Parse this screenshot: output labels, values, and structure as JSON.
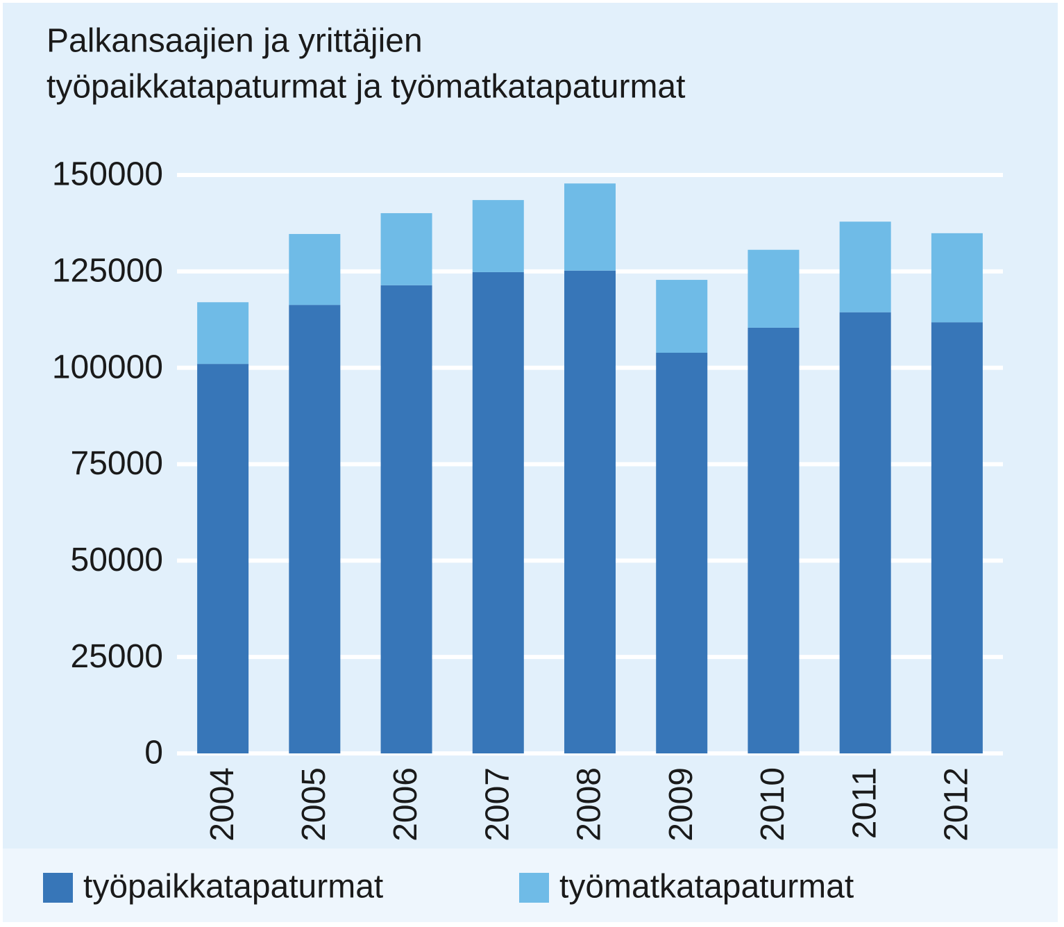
{
  "chart_data": {
    "type": "stacked_bar",
    "title": [
      "Palkansaajien ja yrittäjien",
      "työpaikkatapaturmat ja työmatkatapaturmat"
    ],
    "categories": [
      "2004",
      "2005",
      "2006",
      "2007",
      "2008",
      "2009",
      "2010",
      "2011",
      "2012"
    ],
    "series": [
      {
        "name": "työpaikkatapaturmat",
        "color": "#3776b8",
        "values": [
          101000,
          116300,
          121400,
          124800,
          125200,
          103900,
          110400,
          114400,
          111800
        ]
      },
      {
        "name": "työmatkatapaturmat",
        "color": "#6fbbe7",
        "values": [
          16000,
          18400,
          18700,
          18700,
          22600,
          18900,
          20200,
          23500,
          23100
        ]
      }
    ],
    "ylim": [
      0,
      150000
    ],
    "yticks": [
      0,
      25000,
      50000,
      75000,
      100000,
      125000,
      150000
    ],
    "grid": true
  }
}
